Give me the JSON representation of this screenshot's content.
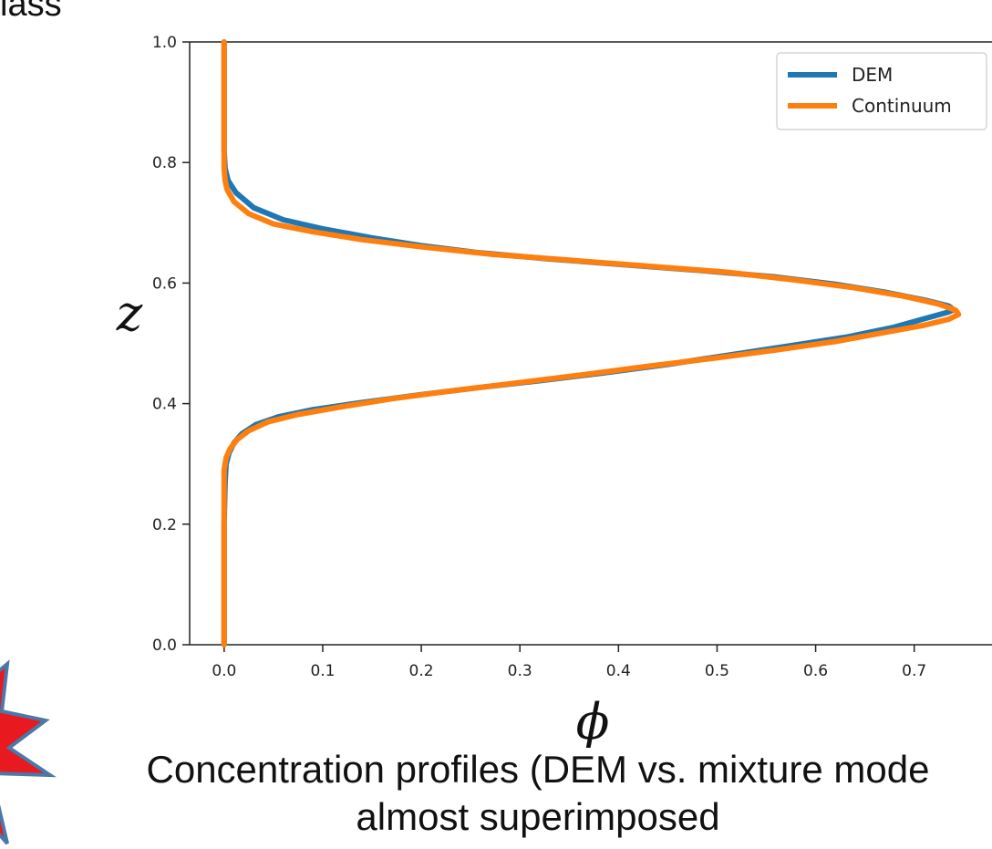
{
  "page": {
    "top_fragment": "lass",
    "caption_line1": "Concentration profiles (DEM vs. mixture mode",
    "caption_line2": "almost superimposed"
  },
  "colors": {
    "dem": "#1f77b4",
    "continuum": "#ff7f0e",
    "star_fill": "#e8191f",
    "star_edge": "#4a78a8"
  },
  "chart_data": {
    "type": "line",
    "title": "",
    "xlabel": "ϕ",
    "ylabel": "z",
    "xlim": [
      -0.035,
      0.79
    ],
    "ylim": [
      0,
      1
    ],
    "xticks": [
      0.0,
      0.1,
      0.2,
      0.3,
      0.4,
      0.5,
      0.6,
      0.7
    ],
    "xtick_labels": [
      "0.0",
      "0.1",
      "0.2",
      "0.3",
      "0.4",
      "0.5",
      "0.6",
      "0.7"
    ],
    "yticks": [
      0.0,
      0.2,
      0.4,
      0.6,
      0.8,
      1.0
    ],
    "ytick_labels": [
      "0.0",
      "0.2",
      "0.4",
      "0.6",
      "0.8",
      "1.0"
    ],
    "legend": {
      "position": "top-right"
    },
    "series": [
      {
        "name": "DEM",
        "color": "#1f77b4",
        "points": [
          [
            0.0,
            1.0
          ],
          [
            0.0,
            0.9
          ],
          [
            0.0,
            0.82
          ],
          [
            0.001,
            0.79
          ],
          [
            0.004,
            0.77
          ],
          [
            0.012,
            0.75
          ],
          [
            0.03,
            0.725
          ],
          [
            0.06,
            0.705
          ],
          [
            0.1,
            0.69
          ],
          [
            0.15,
            0.675
          ],
          [
            0.2,
            0.662
          ],
          [
            0.26,
            0.65
          ],
          [
            0.33,
            0.64
          ],
          [
            0.41,
            0.63
          ],
          [
            0.49,
            0.62
          ],
          [
            0.56,
            0.61
          ],
          [
            0.62,
            0.598
          ],
          [
            0.67,
            0.585
          ],
          [
            0.71,
            0.572
          ],
          [
            0.735,
            0.562
          ],
          [
            0.74,
            0.556
          ],
          [
            0.735,
            0.552
          ],
          [
            0.715,
            0.543
          ],
          [
            0.68,
            0.527
          ],
          [
            0.63,
            0.51
          ],
          [
            0.57,
            0.495
          ],
          [
            0.51,
            0.48
          ],
          [
            0.45,
            0.465
          ],
          [
            0.38,
            0.45
          ],
          [
            0.32,
            0.438
          ],
          [
            0.26,
            0.427
          ],
          [
            0.2,
            0.415
          ],
          [
            0.14,
            0.402
          ],
          [
            0.09,
            0.39
          ],
          [
            0.055,
            0.378
          ],
          [
            0.032,
            0.365
          ],
          [
            0.018,
            0.35
          ],
          [
            0.01,
            0.335
          ],
          [
            0.005,
            0.318
          ],
          [
            0.002,
            0.3
          ],
          [
            0.001,
            0.27
          ],
          [
            0.0,
            0.2
          ],
          [
            0.0,
            0.1
          ],
          [
            0.0,
            0.0
          ]
        ]
      },
      {
        "name": "Continuum",
        "color": "#ff7f0e",
        "points": [
          [
            0.0,
            1.0
          ],
          [
            0.0,
            0.9
          ],
          [
            0.0,
            0.82
          ],
          [
            0.0,
            0.79
          ],
          [
            0.001,
            0.77
          ],
          [
            0.003,
            0.755
          ],
          [
            0.01,
            0.735
          ],
          [
            0.025,
            0.715
          ],
          [
            0.05,
            0.698
          ],
          [
            0.09,
            0.685
          ],
          [
            0.14,
            0.672
          ],
          [
            0.2,
            0.66
          ],
          [
            0.27,
            0.648
          ],
          [
            0.35,
            0.638
          ],
          [
            0.43,
            0.628
          ],
          [
            0.51,
            0.618
          ],
          [
            0.58,
            0.605
          ],
          [
            0.64,
            0.592
          ],
          [
            0.69,
            0.578
          ],
          [
            0.725,
            0.565
          ],
          [
            0.742,
            0.555
          ],
          [
            0.745,
            0.548
          ],
          [
            0.735,
            0.54
          ],
          [
            0.71,
            0.53
          ],
          [
            0.67,
            0.518
          ],
          [
            0.62,
            0.503
          ],
          [
            0.56,
            0.489
          ],
          [
            0.5,
            0.476
          ],
          [
            0.43,
            0.462
          ],
          [
            0.36,
            0.447
          ],
          [
            0.29,
            0.433
          ],
          [
            0.23,
            0.421
          ],
          [
            0.17,
            0.408
          ],
          [
            0.12,
            0.395
          ],
          [
            0.075,
            0.382
          ],
          [
            0.045,
            0.37
          ],
          [
            0.025,
            0.355
          ],
          [
            0.013,
            0.34
          ],
          [
            0.006,
            0.325
          ],
          [
            0.002,
            0.31
          ],
          [
            0.0,
            0.29
          ],
          [
            0.0,
            0.2
          ],
          [
            0.0,
            0.1
          ],
          [
            0.0,
            0.0
          ]
        ]
      }
    ]
  }
}
